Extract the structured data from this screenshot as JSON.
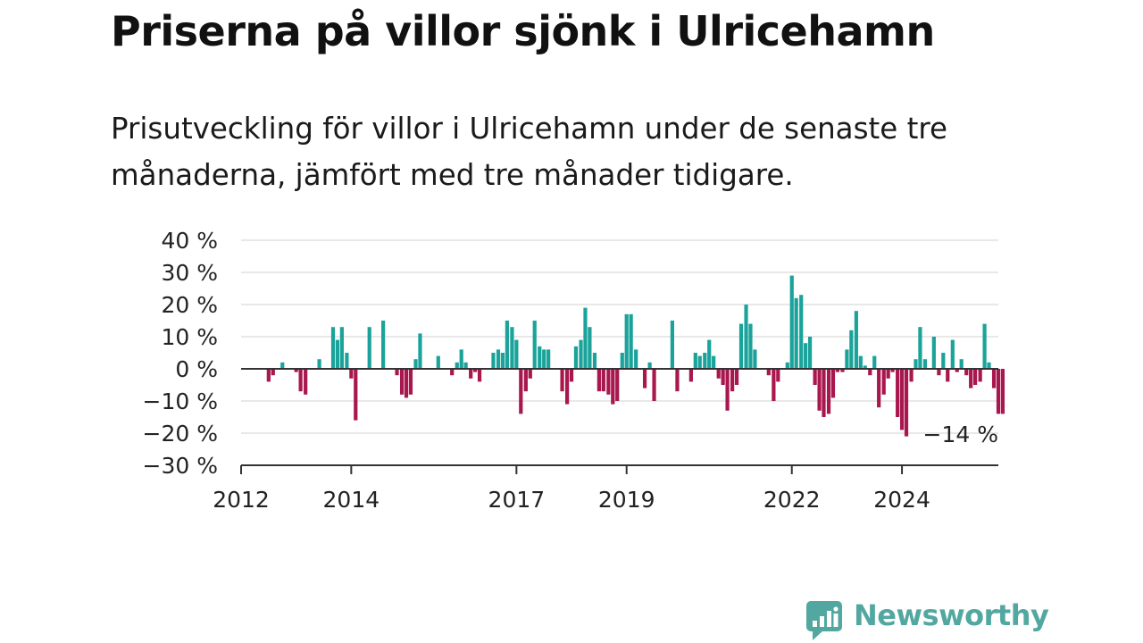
{
  "title": "Priserna på villor sjönk i Ulricehamn",
  "subtitle": "Prisutveckling för villor i Ulricehamn under de senaste tre månaderna, jämfört med tre månader tidigare.",
  "brand": {
    "name": "Newsworthy",
    "icon": "newsworthy-logo-icon"
  },
  "colors": {
    "positive": "#1aa39a",
    "negative": "#a8174e",
    "grid": "#d9d9d9",
    "axis": "#333333",
    "brand": "#52a8a0"
  },
  "chart_data": {
    "type": "bar",
    "title": "",
    "xlabel": "",
    "ylabel": "",
    "ylim": [
      -30,
      40
    ],
    "y_ticks": [
      40,
      30,
      20,
      10,
      0,
      -10,
      -20,
      -30
    ],
    "y_tick_labels": [
      "40 %",
      "30 %",
      "20 %",
      "10 %",
      "0 %",
      "−10 %",
      "−20 %",
      "−30 %"
    ],
    "x_ticks": [
      "2012",
      "2014",
      "2017",
      "2019",
      "2022",
      "2024"
    ],
    "grid": true,
    "legend": "none",
    "final_label": "−14 %",
    "x_start": "2012-01",
    "x_end": "2025-10",
    "series": [
      {
        "values": [
          [
            2012.5,
            -4
          ],
          [
            2012.58,
            -2
          ],
          [
            2012.75,
            2
          ],
          [
            2013.0,
            -1
          ],
          [
            2013.08,
            -7
          ],
          [
            2013.17,
            -8
          ],
          [
            2013.42,
            3
          ],
          [
            2013.67,
            13
          ],
          [
            2013.75,
            9
          ],
          [
            2013.83,
            13
          ],
          [
            2013.92,
            5
          ],
          [
            2014.0,
            -3
          ],
          [
            2014.08,
            -16
          ],
          [
            2014.33,
            13
          ],
          [
            2014.58,
            15
          ],
          [
            2014.83,
            -2
          ],
          [
            2014.92,
            -8
          ],
          [
            2015.0,
            -9
          ],
          [
            2015.08,
            -8
          ],
          [
            2015.17,
            3
          ],
          [
            2015.25,
            11
          ],
          [
            2015.58,
            4
          ],
          [
            2015.83,
            -2
          ],
          [
            2015.92,
            2
          ],
          [
            2016.0,
            6
          ],
          [
            2016.08,
            2
          ],
          [
            2016.17,
            -3
          ],
          [
            2016.25,
            -1
          ],
          [
            2016.33,
            -4
          ],
          [
            2016.58,
            5
          ],
          [
            2016.67,
            6
          ],
          [
            2016.75,
            5
          ],
          [
            2016.83,
            15
          ],
          [
            2016.92,
            13
          ],
          [
            2017.0,
            9
          ],
          [
            2017.08,
            -14
          ],
          [
            2017.17,
            -7
          ],
          [
            2017.25,
            -3
          ],
          [
            2017.33,
            15
          ],
          [
            2017.42,
            7
          ],
          [
            2017.5,
            6
          ],
          [
            2017.58,
            6
          ],
          [
            2017.83,
            -7
          ],
          [
            2017.92,
            -11
          ],
          [
            2018.0,
            -4
          ],
          [
            2018.08,
            7
          ],
          [
            2018.17,
            9
          ],
          [
            2018.25,
            19
          ],
          [
            2018.33,
            13
          ],
          [
            2018.42,
            5
          ],
          [
            2018.5,
            -7
          ],
          [
            2018.58,
            -7
          ],
          [
            2018.67,
            -8
          ],
          [
            2018.75,
            -11
          ],
          [
            2018.83,
            -10
          ],
          [
            2018.92,
            5
          ],
          [
            2019.0,
            17
          ],
          [
            2019.08,
            17
          ],
          [
            2019.17,
            6
          ],
          [
            2019.33,
            -6
          ],
          [
            2019.42,
            2
          ],
          [
            2019.5,
            -10
          ],
          [
            2019.83,
            15
          ],
          [
            2019.92,
            -7
          ],
          [
            2020.17,
            -4
          ],
          [
            2020.25,
            5
          ],
          [
            2020.33,
            4
          ],
          [
            2020.42,
            5
          ],
          [
            2020.5,
            9
          ],
          [
            2020.58,
            4
          ],
          [
            2020.67,
            -3
          ],
          [
            2020.75,
            -5
          ],
          [
            2020.83,
            -13
          ],
          [
            2020.92,
            -7
          ],
          [
            2021.0,
            -5
          ],
          [
            2021.08,
            14
          ],
          [
            2021.17,
            20
          ],
          [
            2021.25,
            14
          ],
          [
            2021.33,
            6
          ],
          [
            2021.58,
            -2
          ],
          [
            2021.67,
            -10
          ],
          [
            2021.75,
            -4
          ],
          [
            2021.92,
            2
          ],
          [
            2022.0,
            29
          ],
          [
            2022.08,
            22
          ],
          [
            2022.17,
            23
          ],
          [
            2022.25,
            8
          ],
          [
            2022.33,
            10
          ],
          [
            2022.42,
            -5
          ],
          [
            2022.5,
            -13
          ],
          [
            2022.58,
            -15
          ],
          [
            2022.67,
            -14
          ],
          [
            2022.75,
            -9
          ],
          [
            2022.83,
            -1
          ],
          [
            2022.92,
            -1
          ],
          [
            2023.0,
            6
          ],
          [
            2023.08,
            12
          ],
          [
            2023.17,
            18
          ],
          [
            2023.25,
            4
          ],
          [
            2023.33,
            1
          ],
          [
            2023.42,
            -2
          ],
          [
            2023.5,
            4
          ],
          [
            2023.58,
            -12
          ],
          [
            2023.67,
            -8
          ],
          [
            2023.75,
            -3
          ],
          [
            2023.83,
            -1
          ],
          [
            2023.92,
            -15
          ],
          [
            2024.0,
            -19
          ],
          [
            2024.08,
            -21
          ],
          [
            2024.17,
            -4
          ],
          [
            2024.25,
            3
          ],
          [
            2024.33,
            13
          ],
          [
            2024.42,
            3
          ],
          [
            2024.58,
            10
          ],
          [
            2024.67,
            -2
          ],
          [
            2024.75,
            5
          ],
          [
            2024.83,
            -4
          ],
          [
            2024.92,
            9
          ],
          [
            2025.0,
            -1
          ],
          [
            2025.08,
            3
          ],
          [
            2025.17,
            -2
          ],
          [
            2025.25,
            -6
          ],
          [
            2025.33,
            -5
          ],
          [
            2025.42,
            -4
          ],
          [
            2025.5,
            14
          ],
          [
            2025.58,
            2
          ],
          [
            2025.67,
            -6
          ],
          [
            2025.75,
            -14
          ],
          [
            2025.83,
            -14
          ]
        ]
      }
    ]
  }
}
